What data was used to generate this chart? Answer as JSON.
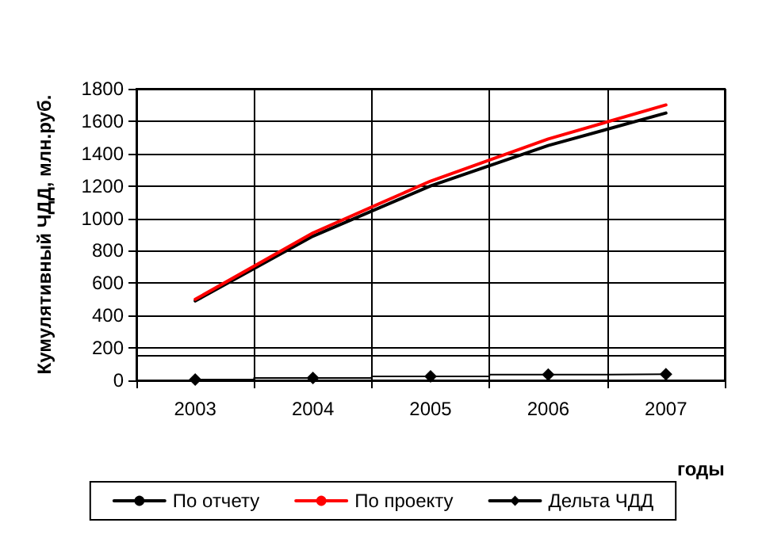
{
  "chart_data": {
    "type": "line",
    "xlabel": "годы",
    "ylabel": "Кумулятивный ЧДД, млн.руб.",
    "categories": [
      "2003",
      "2004",
      "2005",
      "2006",
      "2007"
    ],
    "series": [
      {
        "name": "По отчету",
        "color": "#000000",
        "values": [
          490,
          890,
          1200,
          1450,
          1650
        ],
        "marker": "none"
      },
      {
        "name": "По проекту",
        "color": "#ff0000",
        "values": [
          500,
          910,
          1230,
          1490,
          1700
        ],
        "marker": "none"
      },
      {
        "name": "Дельта ЧДД",
        "color": "#000000",
        "type": "step",
        "values": [
          5,
          15,
          25,
          35,
          38
        ],
        "marker": "diamond"
      }
    ],
    "ylim": [
      0,
      1800
    ],
    "yticks": [
      0,
      200,
      400,
      600,
      800,
      1000,
      1200,
      1400,
      1600,
      1800
    ],
    "grid": true,
    "legend": "bottom",
    "ref_lines": [
      {
        "axis": "y",
        "value": 150,
        "color": "#000000"
      }
    ]
  }
}
